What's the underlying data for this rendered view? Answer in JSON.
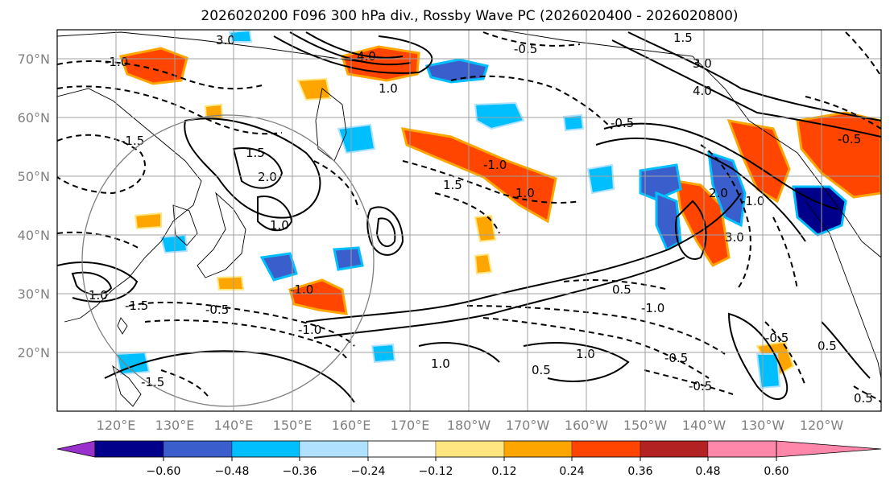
{
  "title": "2026020200 F096 300 hPa div., Rossby Wave PC (2026020400 - 2026020800)",
  "lat_labels": [
    "70°N",
    "60°N",
    "50°N",
    "40°N",
    "30°N",
    "20°N"
  ],
  "lon_labels": [
    "120°E",
    "130°E",
    "140°E",
    "150°E",
    "160°E",
    "170°E",
    "180°W",
    "170°W",
    "160°W",
    "150°W",
    "140°W",
    "130°W",
    "120°W"
  ],
  "colorbar": {
    "ticks": [
      "−0.60",
      "−0.48",
      "−0.36",
      "−0.24",
      "−0.12",
      "0.12",
      "0.24",
      "0.36",
      "0.48",
      "0.60"
    ],
    "colors": [
      "#9932cc",
      "#00008b",
      "#3a5fcd",
      "#00bfff",
      "#b0e2ff",
      "#ffffff",
      "#ffe680",
      "#ffa500",
      "#ff4500",
      "#b22222",
      "#ff88aa"
    ]
  },
  "contour_labels": [
    "3.0",
    "4.0",
    "-0.5",
    "1.5",
    "3.0",
    "4.0",
    "1.0",
    "-1.5",
    "-1.0",
    "-0.5",
    "2.0",
    "1.5",
    "1.0",
    "-1.0",
    "1.5",
    "-0.5",
    "-1.0",
    "1.0",
    "-1.0",
    "-1.5",
    "1.0",
    "-0.5",
    "1.0",
    "0.5",
    "1.0",
    "-0.5",
    "-1.0",
    "0.5",
    "-0.5",
    "-0.5",
    "-1.0",
    "0.5",
    "3.0",
    "2.0",
    "-1.5",
    "0.5"
  ]
}
